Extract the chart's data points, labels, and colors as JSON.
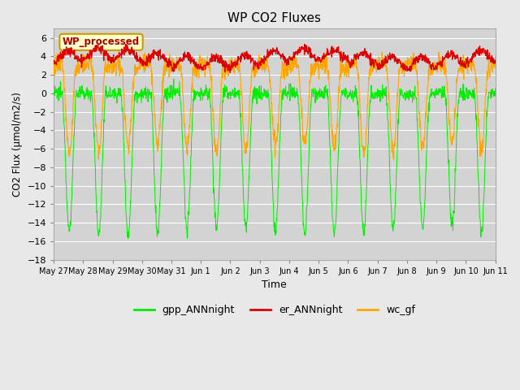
{
  "title": "WP CO2 Fluxes",
  "xlabel": "Time",
  "ylabel": "CO2 Flux (μmol/m2/s)",
  "ylim": [
    -18,
    7
  ],
  "yticks": [
    -18,
    -16,
    -14,
    -12,
    -10,
    -8,
    -6,
    -4,
    -2,
    0,
    2,
    4,
    6
  ],
  "fig_bg_color": "#e8e8e8",
  "plot_bg_color": "#d3d3d3",
  "legend_label": "WP_processed",
  "legend_bg": "#ffffcc",
  "legend_border": "#cc9900",
  "line_colors": {
    "gpp": "#00ee00",
    "er": "#dd0000",
    "wc": "#ffa500"
  },
  "n_days": 15,
  "points_per_day": 96,
  "tick_labels": [
    "May 27",
    "May 28",
    "May 29",
    "May 30",
    "May 31",
    "Jun 1",
    "Jun 2",
    "Jun 3",
    "Jun 4",
    "Jun 5",
    "Jun 6",
    "Jun 7",
    "Jun 8",
    "Jun 9",
    "Jun 10",
    "Jun 11"
  ]
}
